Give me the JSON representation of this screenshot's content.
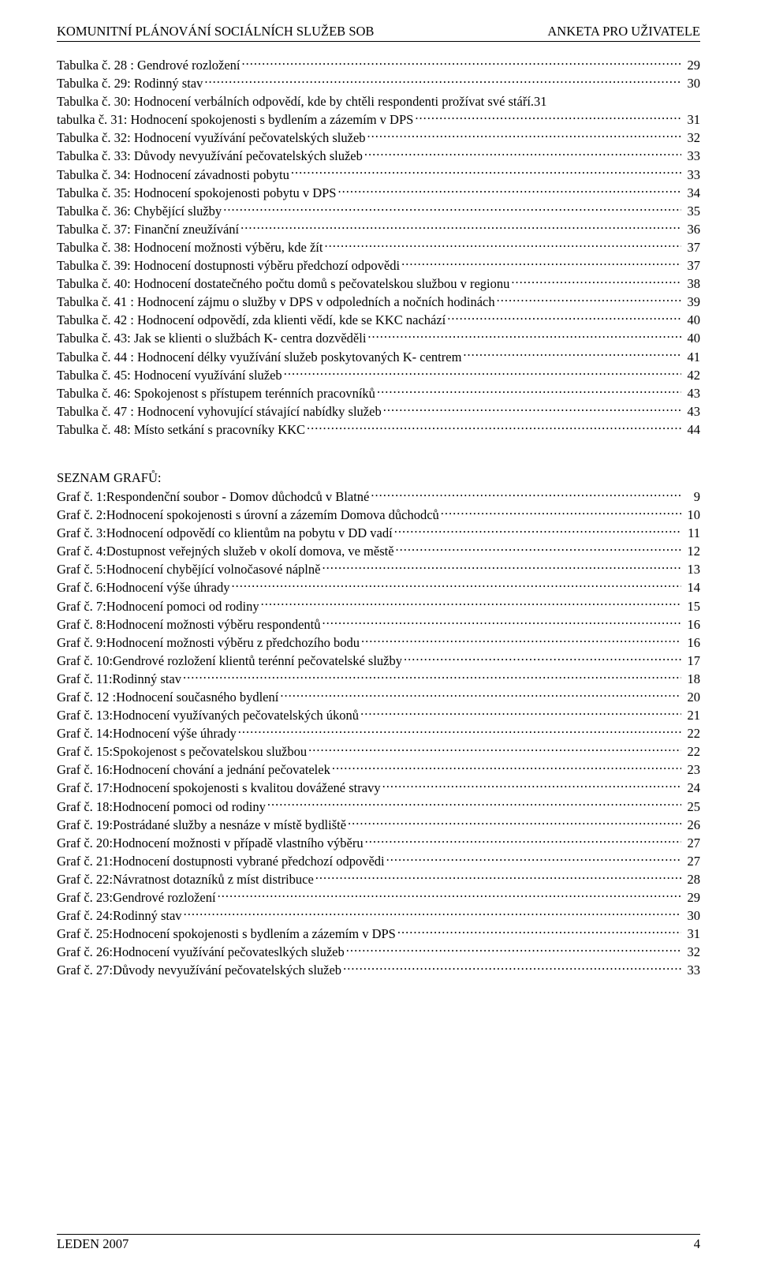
{
  "header": {
    "left": "KOMUNITNÍ PLÁNOVÁNÍ SOCIÁLNÍCH SLUŽEB SOB",
    "right": "ANKETA PRO UŽIVATELE"
  },
  "footer": {
    "left": "LEDEN 2007",
    "page_number": "4"
  },
  "sections": {
    "tables_heading": null,
    "graphs_heading": "SEZNAM GRAFŮ:"
  },
  "tables": [
    {
      "title": "Tabulka č. 28 : Gendrové rozložení",
      "page": "29"
    },
    {
      "title": "Tabulka č. 29: Rodinný stav",
      "page": "30"
    },
    {
      "title": "Tabulka č. 30: Hodnocení verbálních odpovědí, kde by chtěli respondenti prožívat své stáří.31",
      "page": null
    },
    {
      "title": "tabulka č. 31: Hodnocení spokojenosti s bydlením a zázemím v DPS",
      "page": "31"
    },
    {
      "title": "Tabulka č. 32: Hodnocení využívání pečovatelských služeb",
      "page": "32"
    },
    {
      "title": "Tabulka č. 33: Důvody nevyužívání pečovatelských služeb",
      "page": "33"
    },
    {
      "title": "Tabulka č. 34: Hodnocení závadnosti pobytu",
      "page": "33"
    },
    {
      "title": "Tabulka č. 35: Hodnocení spokojenosti pobytu v DPS",
      "page": "34"
    },
    {
      "title": "Tabulka č. 36: Chybějící služby",
      "page": "35"
    },
    {
      "title": "Tabulka č. 37: Finanční zneužívání",
      "page": "36"
    },
    {
      "title": "Tabulka č. 38: Hodnocení možnosti výběru, kde žít",
      "page": "37"
    },
    {
      "title": "Tabulka č. 39: Hodnocení dostupnosti výběru předchozí odpovědi",
      "page": "37"
    },
    {
      "title": "Tabulka č. 40: Hodnocení dostatečného počtu domů s pečovatelskou službou v regionu",
      "page": "38"
    },
    {
      "title": "Tabulka č. 41 : Hodnocení zájmu o služby v DPS v odpoledních a nočních hodinách",
      "page": "39"
    },
    {
      "title": "Tabulka č. 42 : Hodnocení odpovědí, zda klienti vědí, kde se KKC nachází",
      "page": "40"
    },
    {
      "title": "Tabulka č. 43: Jak se klienti o službách K- centra dozvěděli",
      "page": "40"
    },
    {
      "title": "Tabulka č. 44 : Hodnocení délky využívání služeb poskytovaných K- centrem",
      "page": "41"
    },
    {
      "title": "Tabulka č. 45: Hodnocení využívání služeb",
      "page": "42"
    },
    {
      "title": "Tabulka č. 46: Spokojenost s přístupem terénních pracovníků",
      "page": "43"
    },
    {
      "title": "Tabulka č. 47 : Hodnocení vyhovující stávající nabídky služeb",
      "page": "43"
    },
    {
      "title": "Tabulka č. 48: Místo setkání s pracovníky KKC",
      "page": "44"
    }
  ],
  "graphs": [
    {
      "prefix": "Graf č.  1:",
      "rest": " Respondenční soubor - Domov důchodců v Blatné",
      "page": "9"
    },
    {
      "prefix": "Graf č.  2:",
      "rest": " Hodnocení spokojenosti s úrovní a zázemím Domova důchodců",
      "page": "10"
    },
    {
      "prefix": "Graf č.  3:",
      "rest": " Hodnocení odpovědí co klientům na pobytu v DD vadí",
      "page": "11"
    },
    {
      "prefix": "Graf č.  4:",
      "rest": " Dostupnost veřejných služeb v okolí domova, ve městě",
      "page": "12"
    },
    {
      "prefix": "Graf č.  5:",
      "rest": " Hodnocení chybějící volnočasové náplně",
      "page": "13"
    },
    {
      "prefix": "Graf č.  6:",
      "rest": " Hodnocení výše úhrady",
      "page": "14"
    },
    {
      "prefix": "Graf č.  7:",
      "rest": " Hodnocení pomoci od rodiny",
      "page": "15"
    },
    {
      "prefix": "Graf č.  8:",
      "rest": " Hodnocení možnosti výběru respondentů",
      "page": "16"
    },
    {
      "prefix": "Graf č.  9:",
      "rest": " Hodnocení možnosti výběru z předchozího bodu",
      "page": "16"
    },
    {
      "prefix": "Graf č.  10:",
      "rest": " Gendrové rozložení klientů terénní pečovatelské služby",
      "page": "17"
    },
    {
      "prefix": "Graf č.  11:",
      "rest": " Rodinný stav",
      "page": "18"
    },
    {
      "prefix": "Graf č.  12 :",
      "rest": " Hodnocení současného bydlení",
      "page": "20"
    },
    {
      "prefix": "Graf č.  13:",
      "rest": " Hodnocení využívaných pečovatelských úkonů",
      "page": "21"
    },
    {
      "prefix": "Graf č.  14:",
      "rest": " Hodnocení výše úhrady",
      "page": "22"
    },
    {
      "prefix": "Graf č.  15:",
      "rest": " Spokojenost s pečovatelskou službou",
      "page": "22"
    },
    {
      "prefix": "Graf č.  16:",
      "rest": " Hodnocení chování a jednání pečovatelek",
      "page": "23"
    },
    {
      "prefix": "Graf č.  17:",
      "rest": " Hodnocení spokojenosti s kvalitou dovážené stravy",
      "page": "24"
    },
    {
      "prefix": "Graf č.  18:",
      "rest": " Hodnocení pomoci od rodiny",
      "page": "25"
    },
    {
      "prefix": "Graf č.  19:",
      "rest": " Postrádané služby a nesnáze v místě bydliště",
      "page": "26"
    },
    {
      "prefix": "Graf č.  20:",
      "rest": " Hodnocení možnosti v případě vlastního výběru",
      "page": "27"
    },
    {
      "prefix": "Graf č.  21:",
      "rest": " Hodnocení dostupnosti vybrané předchozí odpovědi",
      "page": "27"
    },
    {
      "prefix": "Graf č.  22:",
      "rest": " Návratnost dotazníků z míst distribuce",
      "page": "28"
    },
    {
      "prefix": "Graf č.  23:",
      "rest": " Gendrové rozložení",
      "page": "29"
    },
    {
      "prefix": "Graf č.  24:",
      "rest": " Rodinný stav",
      "page": "30"
    },
    {
      "prefix": "Graf č.  25:",
      "rest": " Hodnocení spokojenosti s bydlením a zázemím v DPS",
      "page": "31"
    },
    {
      "prefix": "Graf č.  26: ",
      "rest": " Hodnocení využívání pečovateslkých služeb",
      "page": "32"
    },
    {
      "prefix": "Graf č.  27:",
      "rest": " Důvody nevyužívání pečovatelských služeb",
      "page": "33"
    }
  ],
  "style": {
    "font_family": "Times New Roman",
    "body_font_size_pt": 12,
    "text_color": "#000000",
    "background_color": "#ffffff",
    "rule_color": "#000000",
    "line_height": 1.4
  }
}
